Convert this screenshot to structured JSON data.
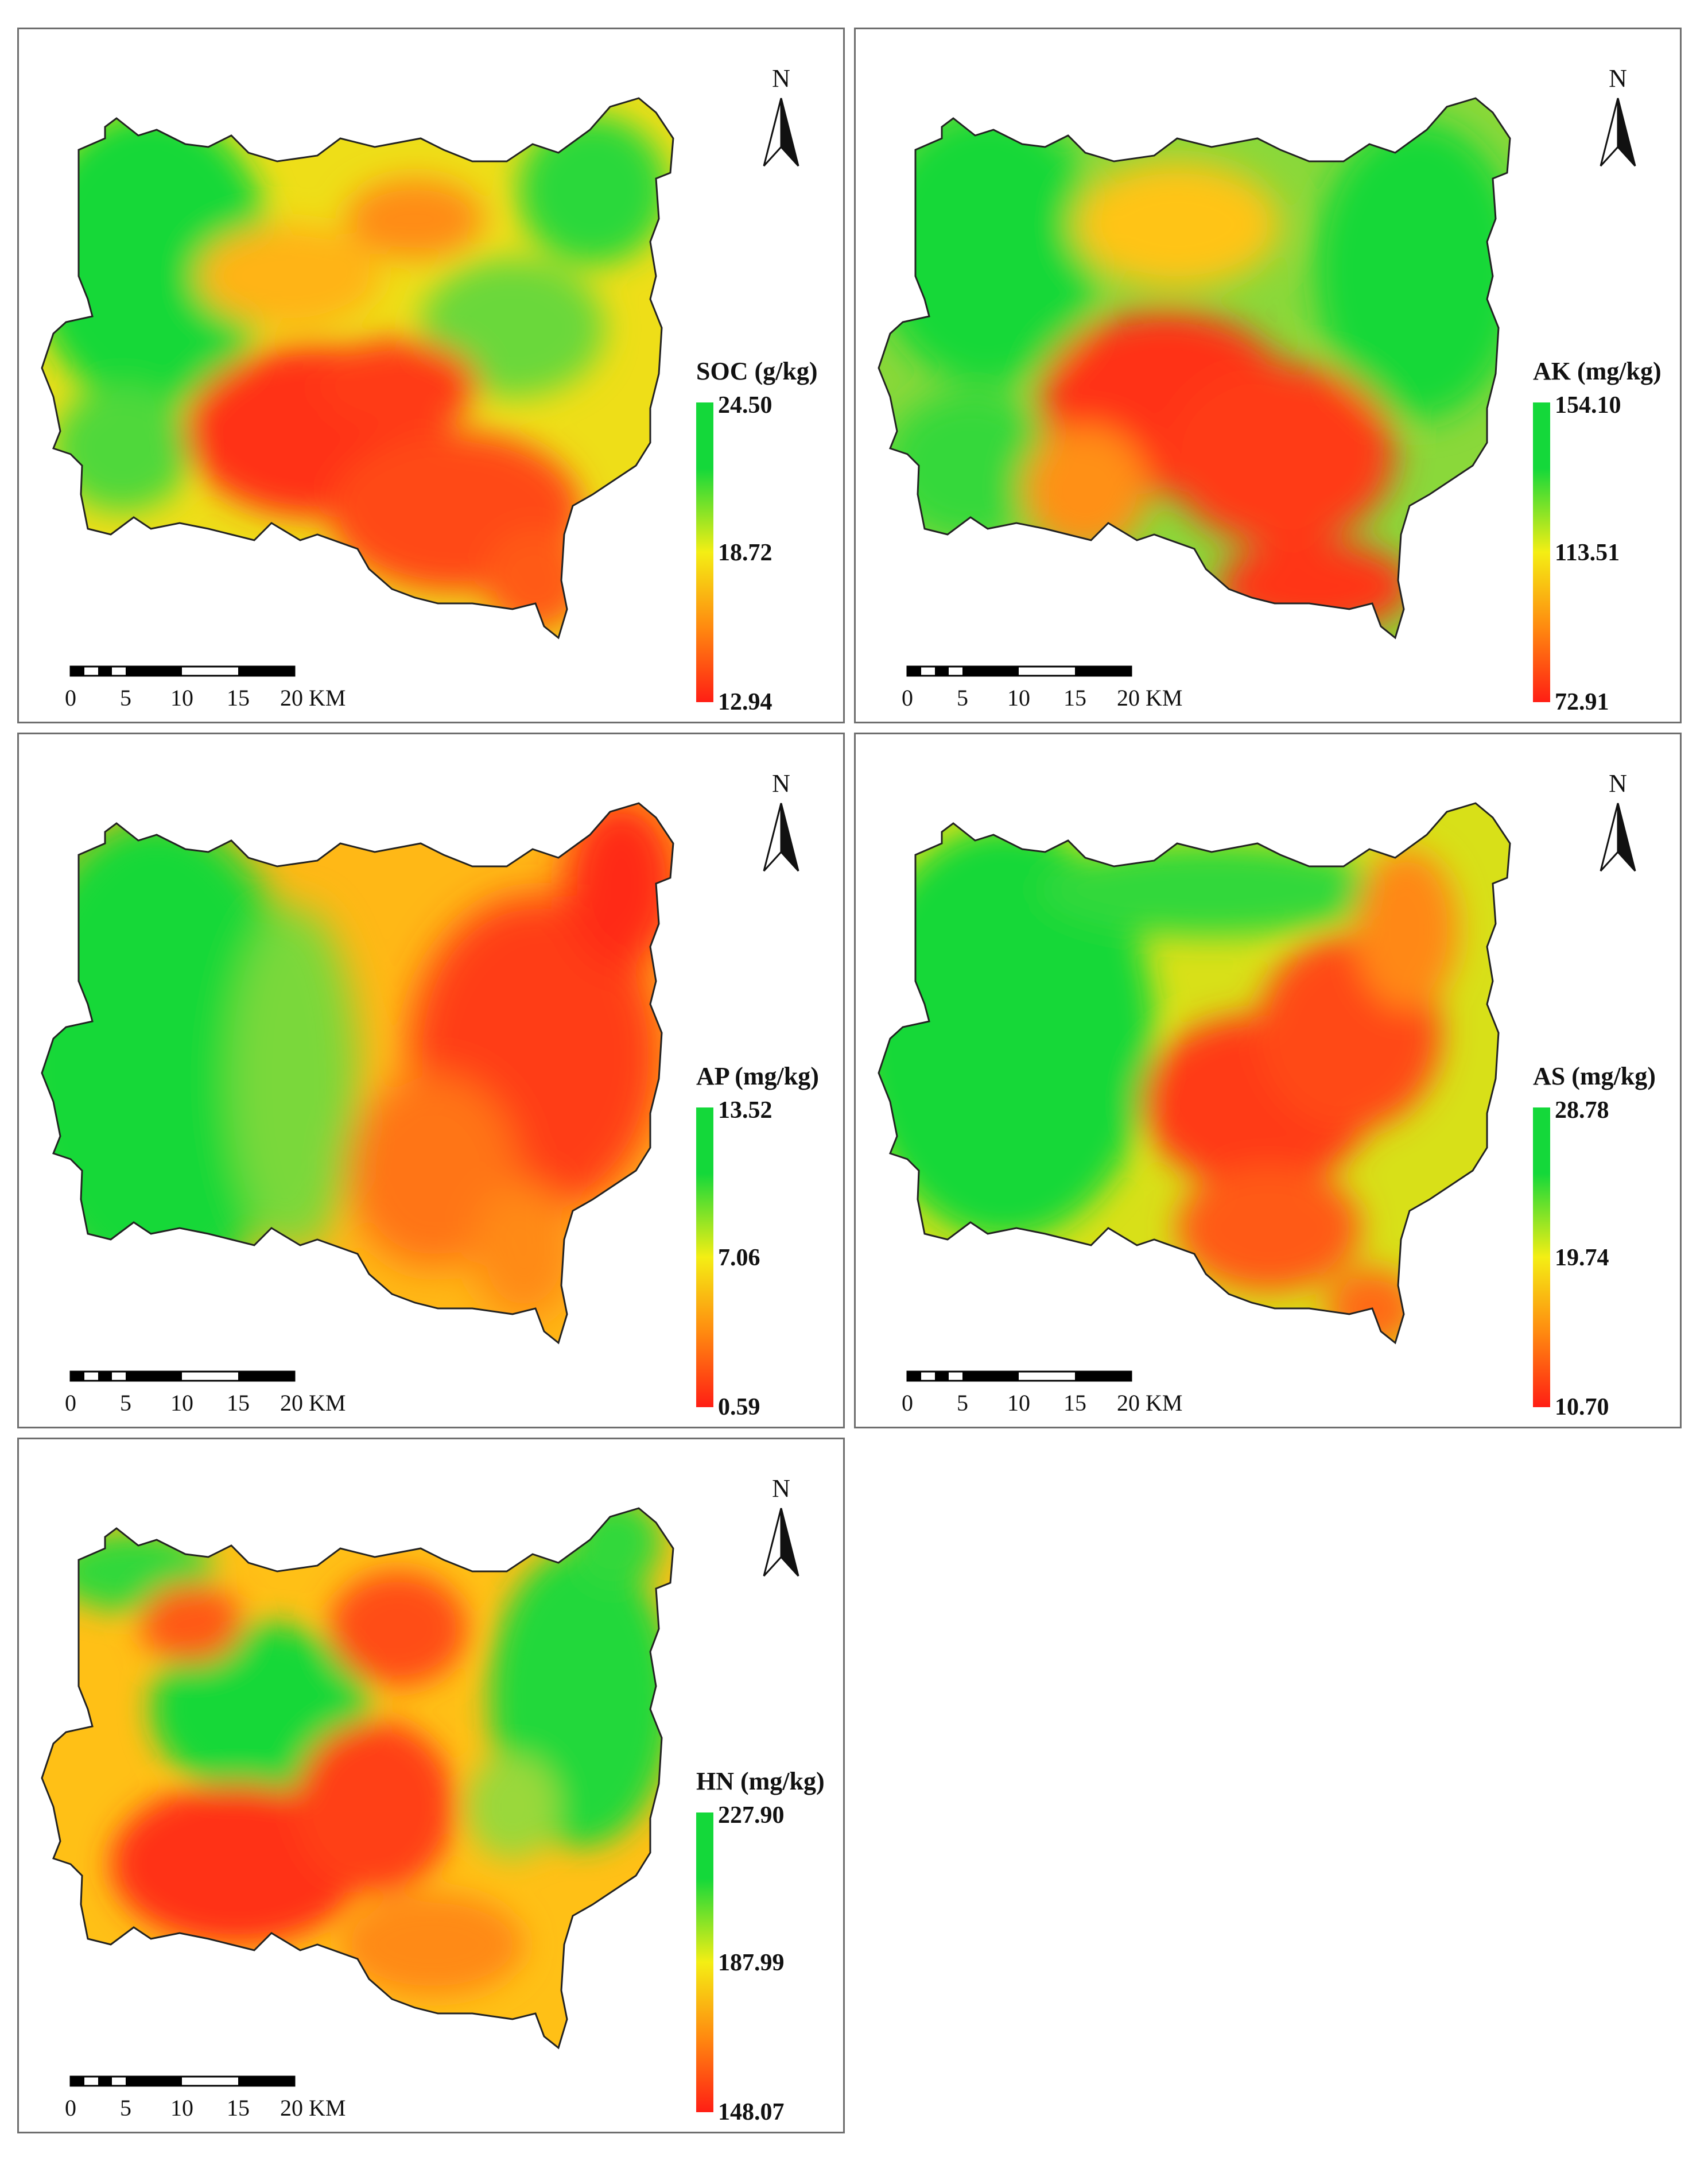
{
  "colors": {
    "low": "#ff2a14",
    "mid": "#ffd400",
    "high": "#1edc3a"
  },
  "north_label": "N",
  "scale_bar": {
    "ticks": [
      "0",
      "5",
      "10",
      "15",
      "20 KM"
    ]
  },
  "panels": [
    {
      "id": "soc",
      "legend_title": "SOC (g/kg)",
      "max_label": "24.50",
      "mid_label": "18.72",
      "min_label": "12.94"
    },
    {
      "id": "ak",
      "legend_title": "AK (mg/kg)",
      "max_label": "154.10",
      "mid_label": "113.51",
      "min_label": "72.91"
    },
    {
      "id": "ap",
      "legend_title": "AP (mg/kg)",
      "max_label": "13.52",
      "mid_label": "7.06",
      "min_label": "0.59"
    },
    {
      "id": "as",
      "legend_title": "AS (mg/kg)",
      "max_label": "28.78",
      "mid_label": "19.74",
      "min_label": "10.70"
    },
    {
      "id": "hn",
      "legend_title": "HN (mg/kg)",
      "max_label": "227.90",
      "mid_label": "187.99",
      "min_label": "148.07"
    }
  ]
}
